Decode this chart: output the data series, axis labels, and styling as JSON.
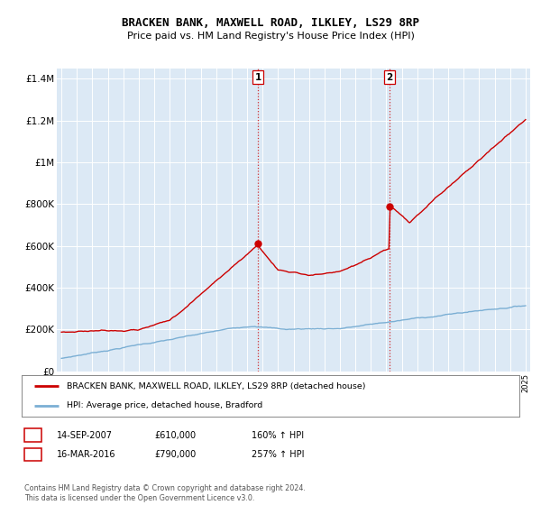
{
  "title": "BRACKEN BANK, MAXWELL ROAD, ILKLEY, LS29 8RP",
  "subtitle": "Price paid vs. HM Land Registry's House Price Index (HPI)",
  "legend_line1": "BRACKEN BANK, MAXWELL ROAD, ILKLEY, LS29 8RP (detached house)",
  "legend_line2": "HPI: Average price, detached house, Bradford",
  "footnote": "Contains HM Land Registry data © Crown copyright and database right 2024.\nThis data is licensed under the Open Government Licence v3.0.",
  "sale1_label": "1",
  "sale1_date": "14-SEP-2007",
  "sale1_price": "£610,000",
  "sale1_hpi": "160% ↑ HPI",
  "sale2_label": "2",
  "sale2_date": "16-MAR-2016",
  "sale2_price": "£790,000",
  "sale2_hpi": "257% ↑ HPI",
  "sale1_x": 2007.71,
  "sale1_y": 610000,
  "sale2_x": 2016.21,
  "sale2_y": 790000,
  "hpi_color": "#7bafd4",
  "price_color": "#cc0000",
  "sale_marker_color": "#cc0000",
  "dashed_line_color": "#cc0000",
  "plot_bg_color": "#dce9f5",
  "ylim": [
    0,
    1450000
  ],
  "xlim_start": 1994.7,
  "xlim_end": 2025.3
}
